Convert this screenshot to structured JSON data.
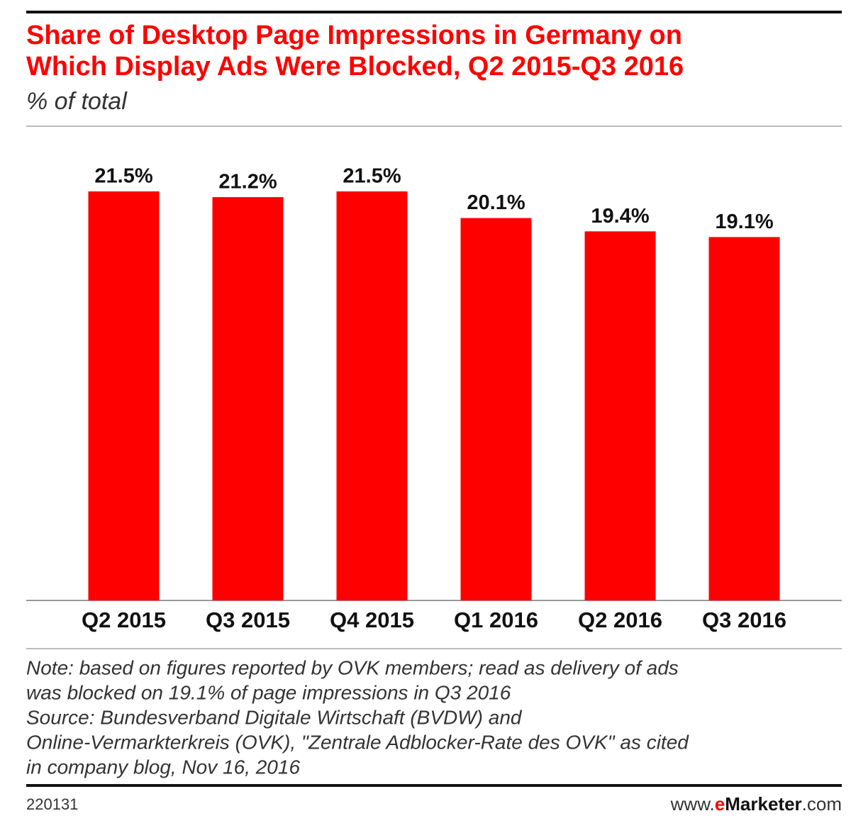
{
  "chart_data": {
    "type": "bar",
    "title": [
      "Share of Desktop Page Impressions in Germany on",
      "Which Display Ads Were Blocked, Q2 2015-Q3 2016"
    ],
    "subtitle": "% of total",
    "categories": [
      "Q2 2015",
      "Q3 2015",
      "Q4 2015",
      "Q1 2016",
      "Q2 2016",
      "Q3 2016"
    ],
    "values": [
      21.5,
      21.2,
      21.5,
      20.1,
      19.4,
      19.1
    ],
    "value_labels": [
      "21.5%",
      "21.2%",
      "21.5%",
      "20.1%",
      "19.4%",
      "19.1%"
    ],
    "color": "#ff0000",
    "note": [
      "Note: based on figures reported by OVK members; read as delivery of ads",
      "was blocked on 19.1% of page impressions in Q3 2016"
    ],
    "source": [
      "Source: Bundesverband Digitale Wirtschaft (BVDW) and",
      "Online-Vermarkterkreis (OVK), \"Zentrale Adblocker-Rate des OVK\" as cited",
      "in company blog, Nov 16, 2016"
    ],
    "chart_id": "220131",
    "logo": {
      "prefix": "www.",
      "accent": "e",
      "brand": "Marketer",
      "suffix": ".com"
    }
  }
}
